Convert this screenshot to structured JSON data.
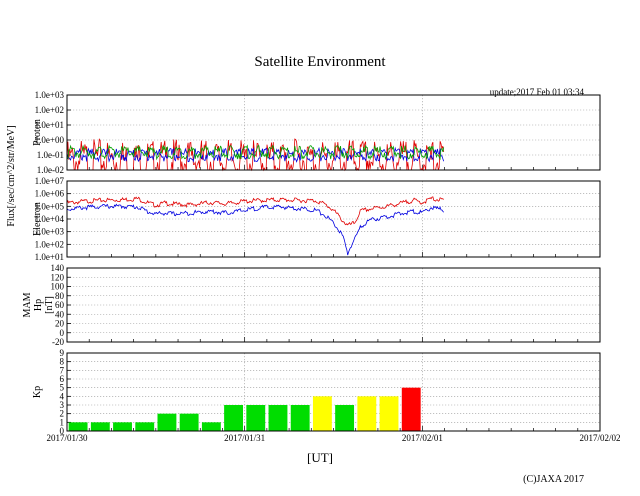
{
  "page": {
    "title": "Satellite Environment",
    "update": "update;2017 Feb 01 03:34",
    "copyright": "(C)JAXA 2017",
    "xlabel": "[UT]",
    "flux_label": "Flux[/sec/cm^2/str/MeV]"
  },
  "chart_data": [
    {
      "type": "line",
      "panel": "proton",
      "ylabel": "Proton",
      "yscale": "log",
      "ylim": [
        0.01,
        1000
      ],
      "yticks": [
        "1.0e+03",
        "1.0e+02",
        "1.0e+01",
        "1.0e+00",
        "1.0e-01",
        "1.0e-02"
      ],
      "xlim": [
        0,
        3
      ],
      "series": [
        {
          "color": "#e00000",
          "x": [
            0,
            0.25,
            0.5,
            0.75,
            1.0,
            1.25,
            1.5,
            1.75,
            2.0,
            2.12
          ],
          "values": [
            0.04,
            0.05,
            0.04,
            0.05,
            0.04,
            0.05,
            0.04,
            0.05,
            0.04,
            0.05
          ]
        },
        {
          "color": "#0000e0",
          "x": [
            0,
            0.25,
            0.5,
            0.75,
            1.0,
            1.25,
            1.5,
            1.75,
            2.0,
            2.12
          ],
          "values": [
            0.1,
            0.1,
            0.1,
            0.1,
            0.1,
            0.1,
            0.1,
            0.1,
            0.1,
            0.1
          ]
        },
        {
          "color": "#00a000",
          "x": [
            0,
            0.25,
            0.5,
            0.75,
            1.0,
            1.25,
            1.5,
            1.75,
            2.0,
            2.12
          ],
          "values": [
            0.15,
            0.15,
            0.15,
            0.15,
            0.15,
            0.15,
            0.15,
            0.15,
            0.15,
            0.15
          ]
        }
      ]
    },
    {
      "type": "line",
      "panel": "electron",
      "ylabel": "Electron",
      "yscale": "log",
      "ylim": [
        10,
        10000000
      ],
      "yticks": [
        "1.0e+07",
        "1.0e+06",
        "1.0e+05",
        "1.0e+04",
        "1.0e+03",
        "1.0e+02",
        "1.0e+01"
      ],
      "xlim": [
        0,
        3
      ],
      "series": [
        {
          "color": "#e00000",
          "x": [
            0,
            0.1,
            0.2,
            0.3,
            0.4,
            0.45,
            0.5,
            0.55,
            0.6,
            0.7,
            0.8,
            0.9,
            1.0,
            1.1,
            1.2,
            1.3,
            1.4,
            1.45,
            1.5,
            1.55,
            1.58,
            1.62,
            1.65,
            1.7,
            1.8,
            1.9,
            1.95,
            2.0,
            2.05,
            2.12
          ],
          "values": [
            180000,
            250000,
            300000,
            330000,
            400000,
            200000,
            120000,
            180000,
            150000,
            130000,
            200000,
            160000,
            250000,
            300000,
            330000,
            300000,
            280000,
            150000,
            50000,
            8000,
            3000,
            5000,
            40000,
            60000,
            100000,
            200000,
            300000,
            200000,
            400000,
            300000
          ]
        },
        {
          "color": "#0000e0",
          "x": [
            0,
            0.1,
            0.2,
            0.3,
            0.4,
            0.45,
            0.5,
            0.55,
            0.6,
            0.7,
            0.8,
            0.9,
            1.0,
            1.1,
            1.2,
            1.3,
            1.4,
            1.45,
            1.5,
            1.55,
            1.58,
            1.62,
            1.65,
            1.7,
            1.8,
            1.9,
            1.95,
            2.0,
            2.05,
            2.12
          ],
          "values": [
            60000,
            80000,
            100000,
            100000,
            90000,
            40000,
            25000,
            30000,
            25000,
            30000,
            40000,
            30000,
            50000,
            80000,
            90000,
            70000,
            50000,
            20000,
            5000,
            500,
            20,
            300,
            2000,
            8000,
            15000,
            30000,
            40000,
            30000,
            80000,
            50000
          ]
        }
      ]
    },
    {
      "type": "line",
      "panel": "mam",
      "ylabel": "MAM Hp [nT]",
      "ylim": [
        -20,
        140
      ],
      "yticks": [
        "140",
        "120",
        "100",
        "80",
        "60",
        "40",
        "20",
        "0",
        "-20"
      ],
      "xlim": [
        0,
        3
      ],
      "series": []
    },
    {
      "type": "bar",
      "panel": "kp",
      "ylabel": "Kp",
      "ylim": [
        0,
        9
      ],
      "yticks": [
        "9",
        "8",
        "7",
        "6",
        "5",
        "4",
        "3",
        "2",
        "1",
        "0"
      ],
      "xlim": [
        0,
        3
      ],
      "xtick_labels": [
        "2017/01/30",
        "2017/01/31",
        "2017/02/01",
        "2017/02/02"
      ],
      "bars": [
        {
          "x": 0.0625,
          "value": 1,
          "color": "#00dd00"
        },
        {
          "x": 0.1875,
          "value": 1,
          "color": "#00dd00"
        },
        {
          "x": 0.3125,
          "value": 1,
          "color": "#00dd00"
        },
        {
          "x": 0.4375,
          "value": 1,
          "color": "#00dd00"
        },
        {
          "x": 0.5625,
          "value": 2,
          "color": "#00dd00"
        },
        {
          "x": 0.6875,
          "value": 2,
          "color": "#00dd00"
        },
        {
          "x": 0.8125,
          "value": 1,
          "color": "#00dd00"
        },
        {
          "x": 0.9375,
          "value": 3,
          "color": "#00dd00"
        },
        {
          "x": 1.0625,
          "value": 3,
          "color": "#00dd00"
        },
        {
          "x": 1.1875,
          "value": 3,
          "color": "#00dd00"
        },
        {
          "x": 1.3125,
          "value": 3,
          "color": "#00dd00"
        },
        {
          "x": 1.4375,
          "value": 4,
          "color": "#ffff00"
        },
        {
          "x": 1.5625,
          "value": 3,
          "color": "#00dd00"
        },
        {
          "x": 1.6875,
          "value": 4,
          "color": "#ffff00"
        },
        {
          "x": 1.8125,
          "value": 4,
          "color": "#ffff00"
        },
        {
          "x": 1.9375,
          "value": 5,
          "color": "#ff0000"
        }
      ]
    }
  ]
}
